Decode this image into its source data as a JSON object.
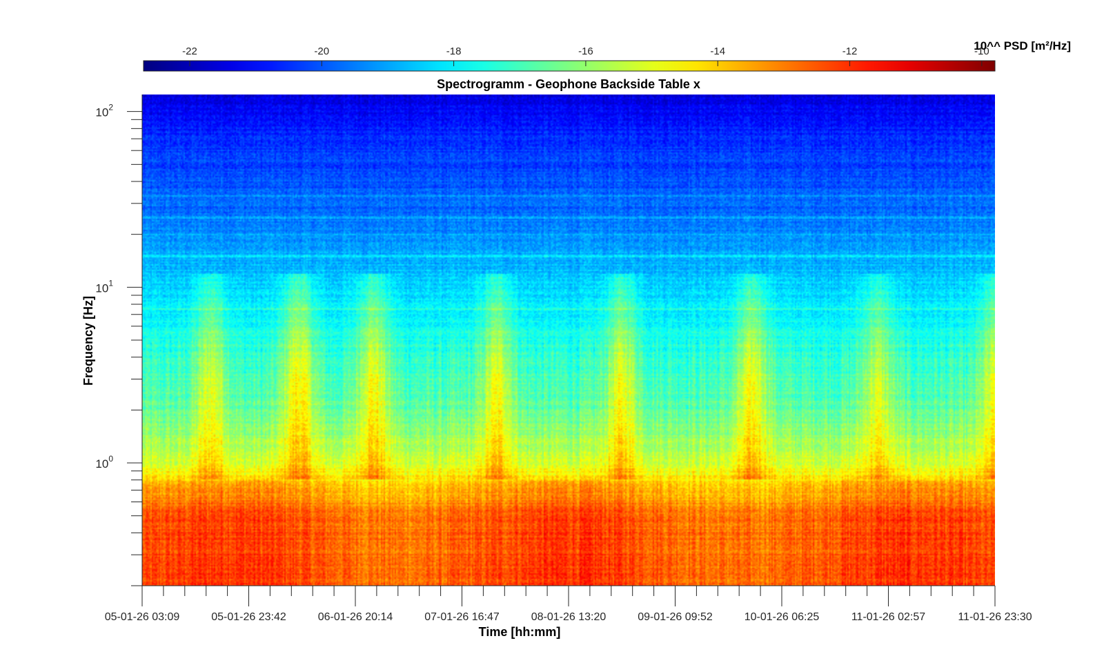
{
  "chart_data": {
    "type": "heatmap",
    "title": "Spectrogramm - Geophone Backside Table x",
    "xlabel": "Time [hh:mm]",
    "ylabel": "Frequency [Hz]",
    "x_tick_labels": [
      "05-01-26 03:09",
      "05-01-26 23:42",
      "06-01-26 20:14",
      "07-01-26 16:47",
      "08-01-26 13:20",
      "09-01-26 09:52",
      "10-01-26 06:25",
      "11-01-26 02:57",
      "11-01-26 23:30"
    ],
    "y_scale": "log",
    "y_ticks": [
      {
        "base": "10",
        "exp": "2",
        "value": 100
      },
      {
        "base": "10",
        "exp": "1",
        "value": 10
      },
      {
        "base": "10",
        "exp": "0",
        "value": 1
      }
    ],
    "ylim": [
      0.2,
      125
    ],
    "colormap": "jet",
    "colorbar": {
      "label": "10^^ PSD [m²/Hz]",
      "range": [
        -22.7,
        -9.8
      ],
      "tick_labels": [
        "-22",
        "-20",
        "-18",
        "-16",
        "-14",
        "-12",
        "-10"
      ],
      "tick_values": [
        -22,
        -20,
        -18,
        -16,
        -14,
        -12,
        -10
      ],
      "location": "top"
    },
    "background_profile": [
      {
        "f": 125,
        "log_psd": -21.6
      },
      {
        "f": 90,
        "log_psd": -20.9
      },
      {
        "f": 60,
        "log_psd": -20.4
      },
      {
        "f": 30,
        "log_psd": -19.8
      },
      {
        "f": 15,
        "log_psd": -18.9
      },
      {
        "f": 10,
        "log_psd": -18.4
      },
      {
        "f": 5,
        "log_psd": -17.5
      },
      {
        "f": 2,
        "log_psd": -16.7
      },
      {
        "f": 1,
        "log_psd": -15.2
      },
      {
        "f": 0.7,
        "log_psd": -13.6
      },
      {
        "f": 0.5,
        "log_psd": -12.6
      },
      {
        "f": 0.2,
        "log_psd": -12.4
      }
    ],
    "tonal_lines_hz": [
      7.5,
      15,
      20,
      25,
      33
    ],
    "activity_bursts": [
      {
        "t_day": 0.55,
        "log_psd_boost": 2.0
      },
      {
        "t_day": 1.25,
        "log_psd_boost": 2.6
      },
      {
        "t_day": 1.85,
        "log_psd_boost": 2.4
      },
      {
        "t_day": 2.85,
        "log_psd_boost": 2.2
      },
      {
        "t_day": 3.85,
        "log_psd_boost": 2.2
      },
      {
        "t_day": 4.9,
        "log_psd_boost": 2.3
      },
      {
        "t_day": 5.9,
        "log_psd_boost": 1.8
      },
      {
        "t_day": 6.85,
        "log_psd_boost": 2.0
      }
    ],
    "time_span_days": 6.85
  }
}
